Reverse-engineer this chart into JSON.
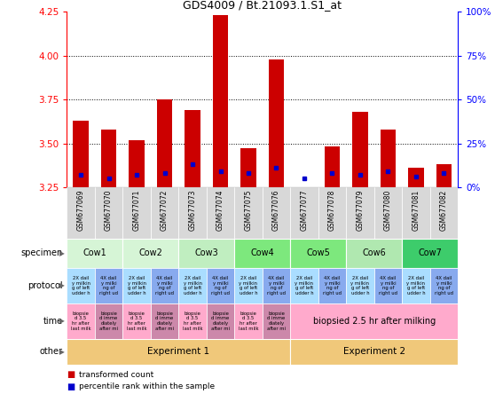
{
  "title": "GDS4009 / Bt.21093.1.S1_at",
  "samples": [
    "GSM677069",
    "GSM677070",
    "GSM677071",
    "GSM677072",
    "GSM677073",
    "GSM677074",
    "GSM677075",
    "GSM677076",
    "GSM677077",
    "GSM677078",
    "GSM677079",
    "GSM677080",
    "GSM677081",
    "GSM677082"
  ],
  "bar_bottoms": [
    3.25,
    3.25,
    3.25,
    3.25,
    3.25,
    3.25,
    3.25,
    3.25,
    3.25,
    3.25,
    3.25,
    3.25,
    3.25,
    3.25
  ],
  "bar_tops": [
    3.63,
    3.58,
    3.52,
    3.75,
    3.69,
    4.23,
    3.47,
    3.98,
    3.25,
    3.48,
    3.68,
    3.58,
    3.36,
    3.38
  ],
  "percentile_y": [
    3.32,
    3.3,
    3.32,
    3.33,
    3.38,
    3.34,
    3.33,
    3.36,
    3.3,
    3.33,
    3.32,
    3.34,
    3.31,
    3.33
  ],
  "ylim": [
    3.25,
    4.25
  ],
  "yticks_left": [
    3.25,
    3.5,
    3.75,
    4.0,
    4.25
  ],
  "bar_color": "#cc0000",
  "percentile_color": "#0000cc",
  "bg_color": "#ffffff",
  "specimen_labels": [
    "Cow1",
    "Cow2",
    "Cow3",
    "Cow4",
    "Cow5",
    "Cow6",
    "Cow7"
  ],
  "specimen_spans": [
    [
      0,
      2
    ],
    [
      2,
      4
    ],
    [
      4,
      6
    ],
    [
      6,
      8
    ],
    [
      8,
      10
    ],
    [
      10,
      12
    ],
    [
      12,
      14
    ]
  ],
  "specimen_colors": [
    "#d6f5d6",
    "#d6f5d6",
    "#c0eec0",
    "#7de87d",
    "#7de87d",
    "#b0e8b0",
    "#3dcc6b"
  ],
  "prot_odd_color": "#aaddff",
  "prot_even_color": "#88aaee",
  "time_odd_color": "#ffaacc",
  "time_even_color": "#cc88aa",
  "time_exp2_color": "#ffaacc",
  "other_color": "#f0c87a",
  "n_samples": 14
}
